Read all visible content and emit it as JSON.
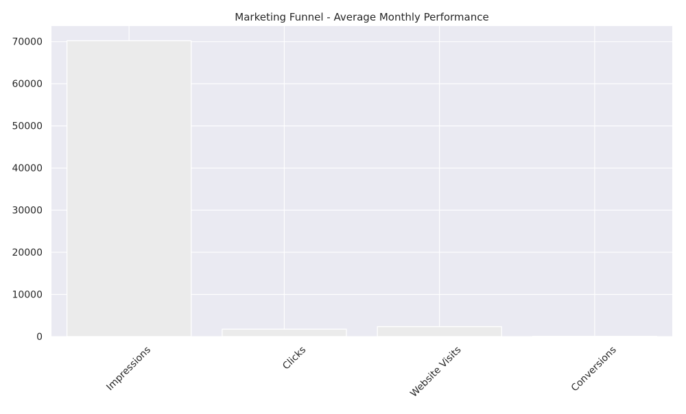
{
  "chart_data": {
    "type": "bar",
    "title": "Marketing Funnel - Average Monthly Performance",
    "xlabel": "",
    "ylabel": "",
    "categories": [
      "Impressions",
      "Clicks",
      "Website Visits",
      "Conversions"
    ],
    "values": [
      70200,
      1750,
      2350,
      45
    ],
    "ylim": [
      0,
      73700
    ],
    "yticks": [
      0,
      10000,
      20000,
      30000,
      40000,
      50000,
      60000,
      70000
    ],
    "ytick_labels": [
      "0",
      "10000",
      "20000",
      "30000",
      "40000",
      "50000",
      "60000",
      "70000"
    ],
    "grid": true,
    "legend": "none",
    "colors": {
      "plot_background": "#EAEAF2",
      "grid": "#FFFFFF",
      "bar_fill": "#EBEBEB",
      "bar_edge": "#FFFFFF",
      "text": "#262626"
    }
  }
}
